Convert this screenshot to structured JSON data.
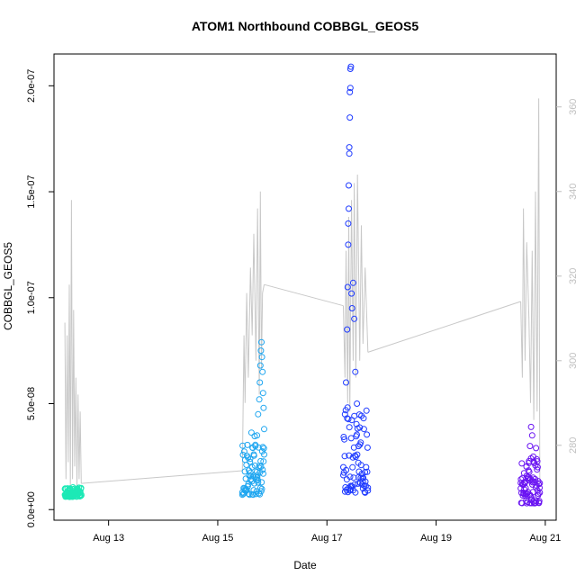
{
  "chart_data": {
    "type": "scatter",
    "title": "ATOM1 Northbound COBBGL_GEOS5",
    "xlabel": "Date",
    "ylabel": "COBBGL_GEOS5",
    "x_ticks": [
      "Aug 13",
      "Aug 15",
      "Aug 17",
      "Aug 19",
      "Aug 21"
    ],
    "x_tick_days": [
      13,
      15,
      17,
      19,
      21
    ],
    "xlim": [
      12.0,
      21.2
    ],
    "y_ticks": [
      "0.0e+00",
      "5.0e-08",
      "1.0e-07",
      "1.5e-07",
      "2.0e-07"
    ],
    "y_tick_values": [
      0,
      5e-08,
      1e-07,
      1.5e-07,
      2e-07
    ],
    "ylim": [
      -5e-09,
      2.15e-07
    ],
    "y2_ticks": [
      "280",
      "300",
      "320",
      "340",
      "360"
    ],
    "y2_tick_values": [
      280,
      300,
      320,
      340,
      360
    ],
    "y2lim": [
      262.3,
      372.5
    ],
    "grid": false,
    "legend": "none",
    "colors": {
      "axis": "#000000",
      "secondary_axis": "#bfbfbf",
      "secondary_line": "#c8c8c8"
    },
    "series": [
      {
        "color": "#1de9b6",
        "x_range": [
          12.2,
          12.5
        ],
        "points": [
          [
            12.2,
            7e-09
          ],
          [
            12.23,
            8e-09
          ],
          [
            12.26,
            9e-09
          ],
          [
            12.29,
            1e-08
          ],
          [
            12.32,
            8.5e-09
          ],
          [
            12.35,
            9.5e-09
          ],
          [
            12.38,
            8e-09
          ],
          [
            12.41,
            9e-09
          ],
          [
            12.44,
            7.5e-09
          ],
          [
            12.47,
            8.5e-09
          ],
          [
            12.5,
            7e-09
          ]
        ],
        "y_band": [
          6e-09,
          1.05e-08
        ]
      },
      {
        "color": "#1fa6f0",
        "x_range": [
          15.45,
          15.85
        ],
        "points": [
          [
            15.45,
            7e-09
          ],
          [
            15.5,
            9e-09
          ],
          [
            15.55,
            1.1e-08
          ],
          [
            15.6,
            1.4e-08
          ],
          [
            15.63,
            2e-08
          ],
          [
            15.66,
            2.6e-08
          ],
          [
            15.69,
            3e-08
          ],
          [
            15.72,
            3.5e-08
          ],
          [
            15.74,
            4.5e-08
          ],
          [
            15.76,
            5.2e-08
          ],
          [
            15.77,
            6e-08
          ],
          [
            15.78,
            6.8e-08
          ],
          [
            15.79,
            7.5e-08
          ],
          [
            15.8,
            7.9e-08
          ],
          [
            15.81,
            7.2e-08
          ],
          [
            15.82,
            6.5e-08
          ],
          [
            15.83,
            5.5e-08
          ],
          [
            15.84,
            4.8e-08
          ],
          [
            15.85,
            3.8e-08
          ]
        ],
        "y_band": [
          7e-09,
          3.8e-08
        ]
      },
      {
        "color": "#1f3bff",
        "x_range": [
          17.3,
          17.75
        ],
        "points": [
          [
            17.3,
            2e-08
          ],
          [
            17.33,
            4.5e-08
          ],
          [
            17.35,
            6e-08
          ],
          [
            17.37,
            8.5e-08
          ],
          [
            17.38,
            1.05e-07
          ],
          [
            17.39,
            1.25e-07
          ],
          [
            17.39,
            1.35e-07
          ],
          [
            17.4,
            1.42e-07
          ],
          [
            17.4,
            1.53e-07
          ],
          [
            17.41,
            1.68e-07
          ],
          [
            17.41,
            1.71e-07
          ],
          [
            17.42,
            1.85e-07
          ],
          [
            17.42,
            1.97e-07
          ],
          [
            17.43,
            1.99e-07
          ],
          [
            17.43,
            2.08e-07
          ],
          [
            17.44,
            2.09e-07
          ],
          [
            17.45,
            1.02e-07
          ],
          [
            17.46,
            9.5e-08
          ],
          [
            17.48,
            1.07e-07
          ],
          [
            17.5,
            9e-08
          ],
          [
            17.52,
            6.5e-08
          ],
          [
            17.55,
            5e-08
          ],
          [
            17.58,
            3e-08
          ],
          [
            17.62,
            1.5e-08
          ],
          [
            17.66,
            1e-08
          ],
          [
            17.7,
            8e-09
          ],
          [
            17.75,
            9e-09
          ]
        ],
        "y_band": [
          8e-09,
          5e-08
        ]
      },
      {
        "color": "#6a14f2",
        "x_range": [
          20.55,
          20.9
        ],
        "points": [
          [
            20.55,
            1e-08
          ],
          [
            20.58,
            1.2e-08
          ],
          [
            20.62,
            1.3e-08
          ],
          [
            20.66,
            1.6e-08
          ],
          [
            20.7,
            2.2e-08
          ],
          [
            20.72,
            3e-08
          ],
          [
            20.74,
            3.9e-08
          ],
          [
            20.76,
            3.5e-08
          ],
          [
            20.78,
            2.5e-08
          ],
          [
            20.8,
            2.2e-08
          ],
          [
            20.83,
            2.9e-08
          ],
          [
            20.86,
            2e-08
          ],
          [
            20.88,
            1.2e-08
          ],
          [
            20.9,
            8e-09
          ]
        ],
        "y_band": [
          3e-09,
          2.5e-08
        ]
      }
    ],
    "secondary_series": {
      "name": "",
      "color": "#c8c8c8",
      "segments": [
        [
          [
            12.2,
            309
          ],
          [
            12.22,
            272
          ],
          [
            12.24,
            306
          ],
          [
            12.26,
            276
          ],
          [
            12.28,
            318
          ],
          [
            12.3,
            270
          ],
          [
            12.32,
            338
          ],
          [
            12.34,
            272
          ],
          [
            12.36,
            312
          ],
          [
            12.38,
            275
          ],
          [
            12.4,
            296
          ],
          [
            12.42,
            270
          ],
          [
            12.44,
            292
          ],
          [
            12.46,
            272
          ],
          [
            12.48,
            288
          ],
          [
            12.5,
            271
          ]
        ],
        [
          [
            12.5,
            271
          ],
          [
            15.45,
            274
          ]
        ],
        [
          [
            15.45,
            274
          ],
          [
            15.48,
            306
          ],
          [
            15.5,
            290
          ],
          [
            15.53,
            316
          ],
          [
            15.56,
            296
          ],
          [
            15.6,
            322
          ],
          [
            15.63,
            306
          ],
          [
            15.66,
            330
          ],
          [
            15.7,
            300
          ],
          [
            15.73,
            336
          ],
          [
            15.76,
            292
          ],
          [
            15.78,
            340
          ],
          [
            15.8,
            298
          ],
          [
            15.82,
            316
          ],
          [
            15.85,
            318
          ]
        ],
        [
          [
            15.85,
            318
          ],
          [
            17.3,
            313
          ]
        ],
        [
          [
            17.3,
            313
          ],
          [
            17.33,
            296
          ],
          [
            17.35,
            326
          ],
          [
            17.38,
            290
          ],
          [
            17.4,
            334
          ],
          [
            17.42,
            288
          ],
          [
            17.45,
            338
          ],
          [
            17.48,
            300
          ],
          [
            17.5,
            342
          ],
          [
            17.53,
            296
          ],
          [
            17.56,
            344
          ],
          [
            17.6,
            300
          ],
          [
            17.63,
            332
          ],
          [
            17.66,
            304
          ],
          [
            17.7,
            322
          ],
          [
            17.75,
            302
          ]
        ],
        [
          [
            17.75,
            302
          ],
          [
            20.55,
            314
          ]
        ],
        [
          [
            20.55,
            314
          ],
          [
            20.58,
            296
          ],
          [
            20.6,
            336
          ],
          [
            20.63,
            300
          ],
          [
            20.66,
            328
          ],
          [
            20.7,
            310
          ],
          [
            20.73,
            290
          ],
          [
            20.76,
            326
          ],
          [
            20.79,
            286
          ],
          [
            20.82,
            340
          ],
          [
            20.85,
            288
          ],
          [
            20.88,
            362
          ],
          [
            20.9,
            272
          ]
        ]
      ]
    }
  }
}
